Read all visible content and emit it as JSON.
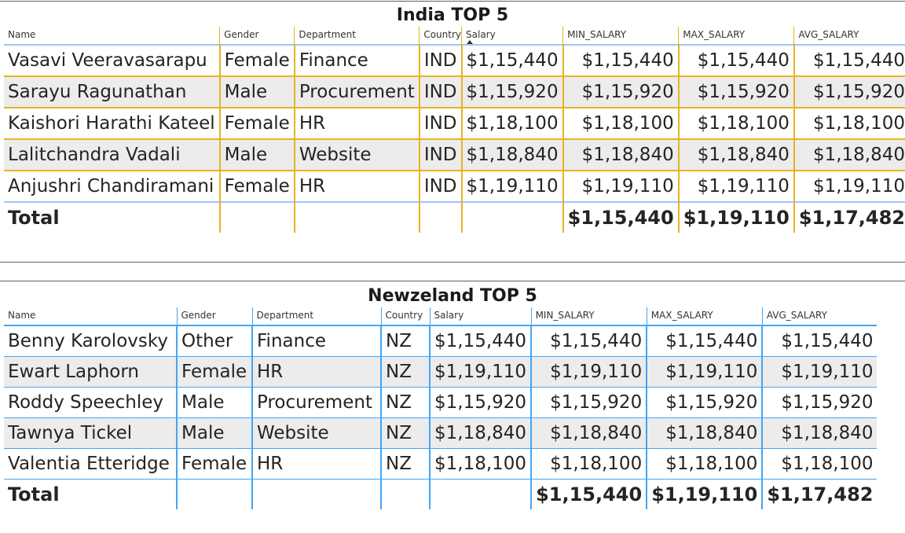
{
  "columns": [
    "Name",
    "Gender",
    "Department",
    "Country",
    "Salary",
    "MIN_SALARY",
    "MAX_SALARY",
    "AVG_SALARY"
  ],
  "total_label": "Total",
  "grid_colors": {
    "india": "#e6b422",
    "newzeland": "#42a5f5",
    "row_alt": "#ececec"
  },
  "india": {
    "title": "India TOP 5",
    "rows": [
      [
        "Vasavi Veeravasarapu",
        "Female",
        "Finance",
        "IND",
        "$1,15,440",
        "$1,15,440",
        "$1,15,440",
        "$1,15,440"
      ],
      [
        "Sarayu Ragunathan",
        "Male",
        "Procurement",
        "IND",
        "$1,15,920",
        "$1,15,920",
        "$1,15,920",
        "$1,15,920"
      ],
      [
        "Kaishori Harathi Kateel",
        "Female",
        "HR",
        "IND",
        "$1,18,100",
        "$1,18,100",
        "$1,18,100",
        "$1,18,100"
      ],
      [
        "Lalitchandra Vadali",
        "Male",
        "Website",
        "IND",
        "$1,18,840",
        "$1,18,840",
        "$1,18,840",
        "$1,18,840"
      ],
      [
        "Anjushri Chandiramani",
        "Female",
        "HR",
        "IND",
        "$1,19,110",
        "$1,19,110",
        "$1,19,110",
        "$1,19,110"
      ]
    ],
    "totals": {
      "min": "$1,15,440",
      "max": "$1,19,110",
      "avg": "$1,17,482"
    }
  },
  "newzeland": {
    "title": "Newzeland TOP 5",
    "rows": [
      [
        "Benny Karolovsky",
        "Other",
        "Finance",
        "NZ",
        "$1,15,440",
        "$1,15,440",
        "$1,15,440",
        "$1,15,440"
      ],
      [
        "Ewart Laphorn",
        "Female",
        "HR",
        "NZ",
        "$1,19,110",
        "$1,19,110",
        "$1,19,110",
        "$1,19,110"
      ],
      [
        "Roddy Speechley",
        "Male",
        "Procurement",
        "NZ",
        "$1,15,920",
        "$1,15,920",
        "$1,15,920",
        "$1,15,920"
      ],
      [
        "Tawnya Tickel",
        "Male",
        "Website",
        "NZ",
        "$1,18,840",
        "$1,18,840",
        "$1,18,840",
        "$1,18,840"
      ],
      [
        "Valentia Etteridge",
        "Female",
        "HR",
        "NZ",
        "$1,18,100",
        "$1,18,100",
        "$1,18,100",
        "$1,18,100"
      ]
    ],
    "totals": {
      "min": "$1,15,440",
      "max": "$1,19,110",
      "avg": "$1,17,482"
    }
  }
}
